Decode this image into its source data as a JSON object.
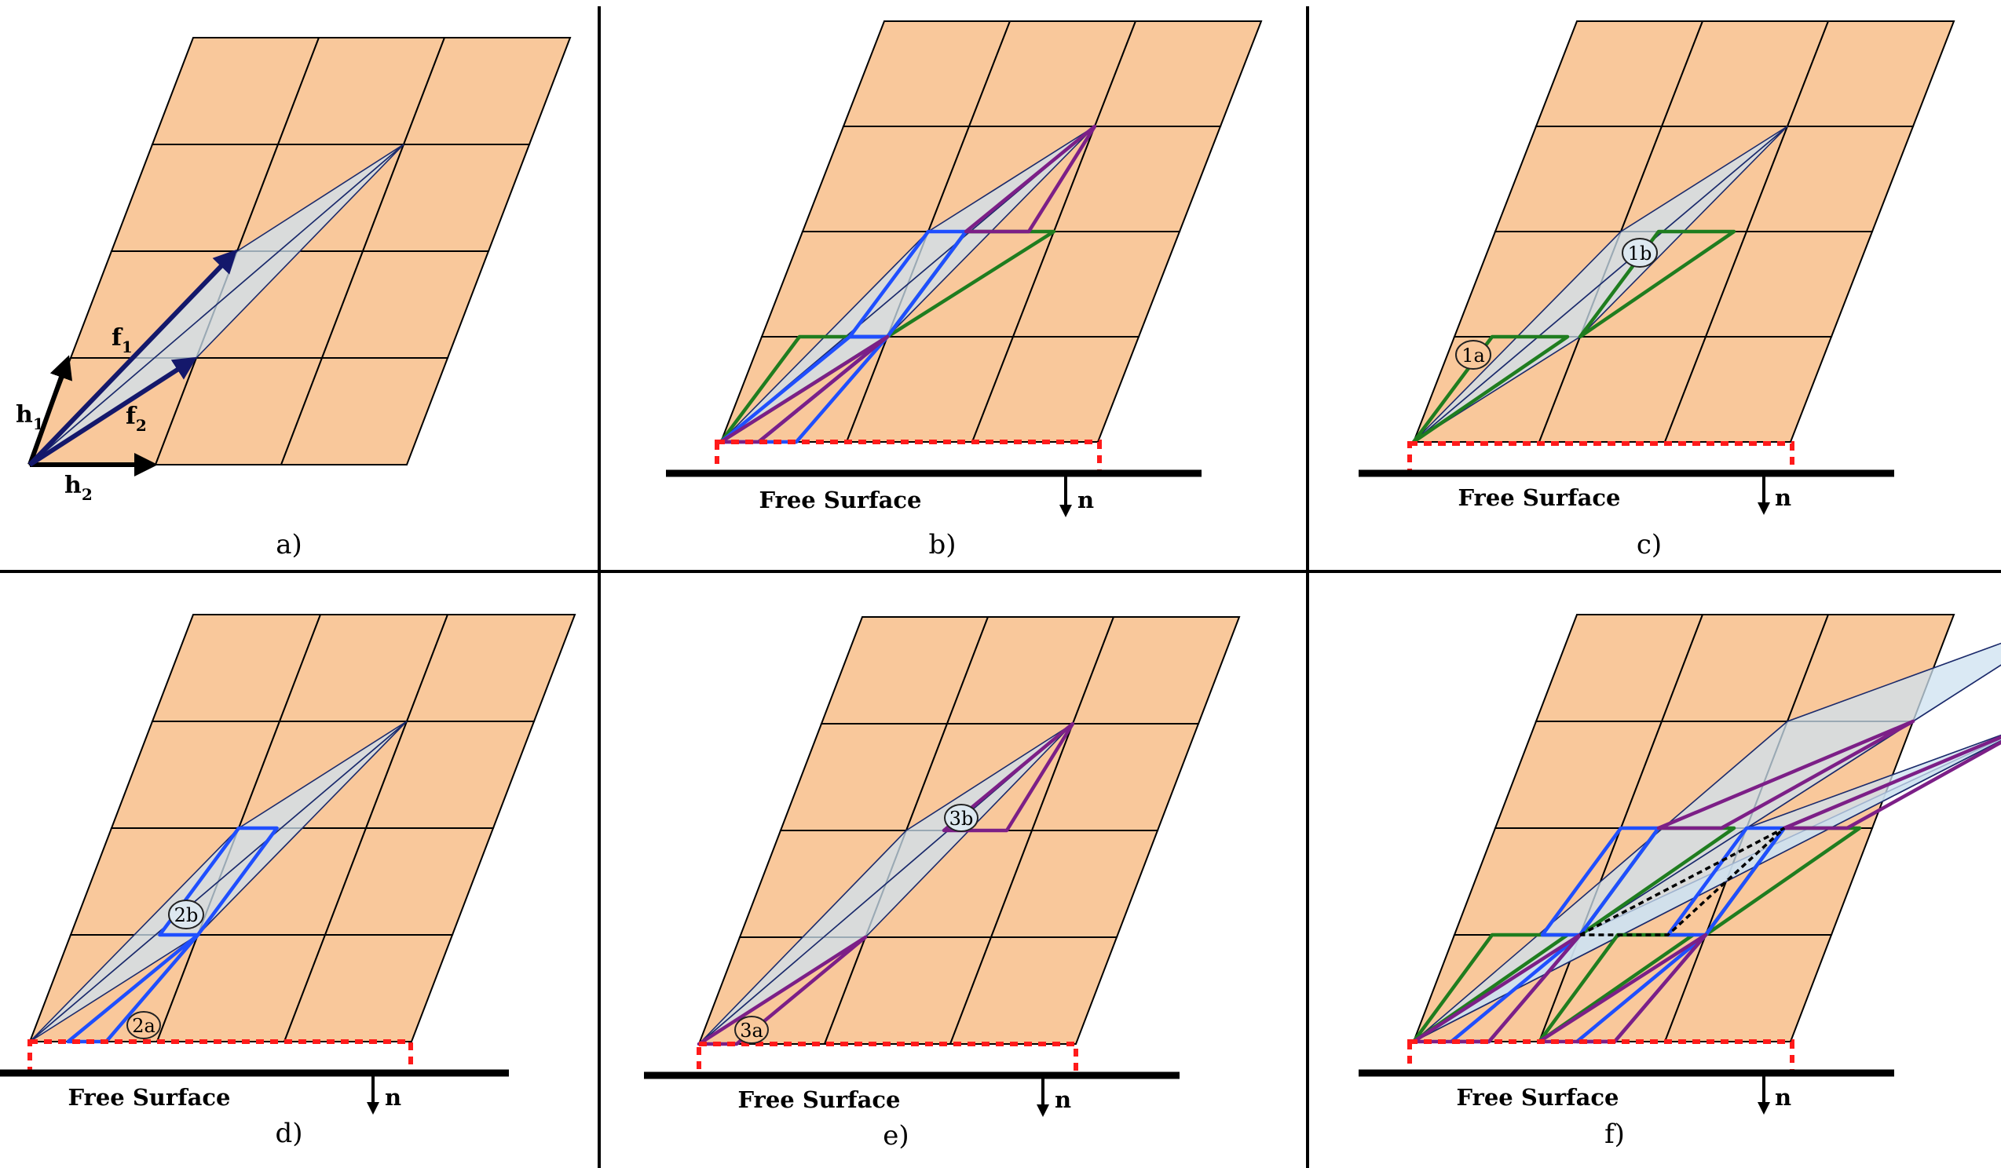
{
  "colors": {
    "cell_fill": "#f9c89b",
    "shaded_triangle": "#cde1f0",
    "green_parallelogram": "#1f7d1f",
    "blue_parallelogram": "#1f4fff",
    "purple_parallelogram": "#7c1f87",
    "surface_box": "#ff1a1a"
  },
  "panels": {
    "a": {
      "label": "a)",
      "vectors": {
        "h1": "h",
        "h1_sub": "1",
        "h2": "h",
        "h2_sub": "2",
        "f1": "f",
        "f1_sub": "1",
        "f2": "f",
        "f2_sub": "2"
      }
    },
    "b": {
      "label": "b)",
      "surface_label": "Free Surface",
      "normal_label": "n"
    },
    "c": {
      "label": "c)",
      "surface_label": "Free Surface",
      "normal_label": "n",
      "badges": [
        "1a",
        "1b"
      ]
    },
    "d": {
      "label": "d)",
      "surface_label": "Free Surface",
      "normal_label": "n",
      "badges": [
        "2a",
        "2b"
      ]
    },
    "e": {
      "label": "e)",
      "surface_label": "Free Surface",
      "normal_label": "n",
      "badges": [
        "3a",
        "3b"
      ]
    },
    "f": {
      "label": "f)",
      "surface_label": "Free Surface",
      "normal_label": "n"
    }
  }
}
